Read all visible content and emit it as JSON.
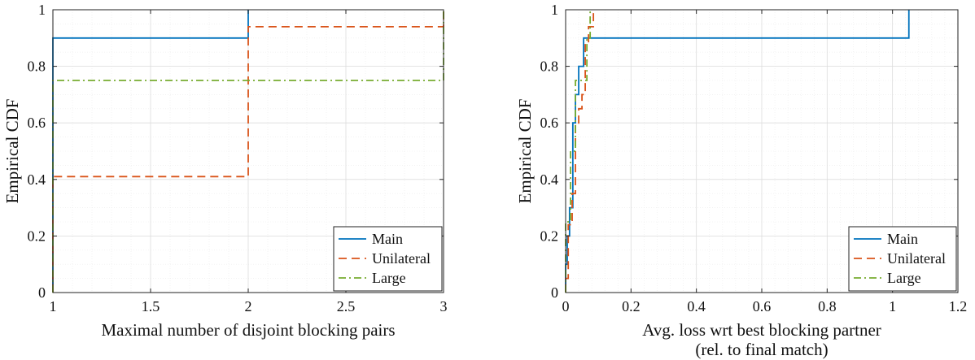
{
  "chart_data": [
    {
      "type": "line",
      "style": "step",
      "xlabel": "Maximal number of disjoint blocking pairs",
      "xlabel2": "",
      "ylabel": "Empirical CDF",
      "xlim": [
        1,
        3
      ],
      "ylim": [
        0,
        1
      ],
      "xticks": [
        1,
        1.5,
        2,
        2.5,
        3
      ],
      "xtick_labels": [
        "1",
        "1.5",
        "2",
        "2.5",
        "3"
      ],
      "yticks": [
        0,
        0.2,
        0.4,
        0.6,
        0.8,
        1
      ],
      "ytick_labels": [
        "0",
        "0.2",
        "0.4",
        "0.6",
        "0.8",
        "1"
      ],
      "grid": true,
      "legend_position": "bottom-right",
      "series": [
        {
          "name": "Main",
          "color": "#0072BD",
          "dash": "solid",
          "x": [
            1,
            1,
            2,
            2
          ],
          "y": [
            0,
            0.9,
            0.9,
            1
          ]
        },
        {
          "name": "Unilateral",
          "color": "#D95319",
          "dash": "dashed",
          "x": [
            1,
            1,
            2,
            2,
            3,
            3
          ],
          "y": [
            0,
            0.41,
            0.41,
            0.94,
            0.94,
            1
          ]
        },
        {
          "name": "Large",
          "color": "#77AC30",
          "dash": "dashdot",
          "x": [
            1,
            1,
            3,
            3
          ],
          "y": [
            0,
            0.75,
            0.75,
            1
          ]
        }
      ]
    },
    {
      "type": "line",
      "style": "step",
      "xlabel": "Avg. loss wrt best blocking partner",
      "xlabel2": "(rel. to final match)",
      "ylabel": "Empirical CDF",
      "xlim": [
        0,
        1.2
      ],
      "ylim": [
        0,
        1
      ],
      "xticks": [
        0,
        0.2,
        0.4,
        0.6,
        0.8,
        1,
        1.2
      ],
      "xtick_labels": [
        "0",
        "0.2",
        "0.4",
        "0.6",
        "0.8",
        "1",
        "1.2"
      ],
      "yticks": [
        0,
        0.2,
        0.4,
        0.6,
        0.8,
        1
      ],
      "ytick_labels": [
        "0",
        "0.2",
        "0.4",
        "0.6",
        "0.8",
        "1"
      ],
      "grid": true,
      "legend_position": "bottom-right",
      "series": [
        {
          "name": "Main",
          "color": "#0072BD",
          "dash": "solid",
          "x": [
            0.0,
            0.0,
            0.005,
            0.005,
            0.012,
            0.012,
            0.022,
            0.022,
            0.03,
            0.03,
            0.04,
            0.04,
            0.055,
            0.055,
            0.06,
            0.06,
            1.05,
            1.05
          ],
          "y": [
            0,
            0.1,
            0.1,
            0.2,
            0.2,
            0.3,
            0.3,
            0.6,
            0.6,
            0.7,
            0.7,
            0.8,
            0.8,
            0.9,
            0.9,
            0.9,
            0.9,
            1.0
          ]
        },
        {
          "name": "Unilateral",
          "color": "#D95319",
          "dash": "dashed",
          "x": [
            0.0,
            0.0,
            0.008,
            0.008,
            0.02,
            0.02,
            0.03,
            0.03,
            0.04,
            0.04,
            0.05,
            0.05,
            0.06,
            0.06,
            0.07,
            0.07,
            0.085,
            0.085
          ],
          "y": [
            0,
            0.05,
            0.05,
            0.24,
            0.24,
            0.35,
            0.35,
            0.59,
            0.59,
            0.65,
            0.65,
            0.7,
            0.7,
            0.88,
            0.88,
            0.94,
            0.94,
            1.0
          ]
        },
        {
          "name": "Large",
          "color": "#77AC30",
          "dash": "dashdot",
          "x": [
            0.0,
            0.0,
            0.005,
            0.005,
            0.015,
            0.015,
            0.03,
            0.03,
            0.045,
            0.045,
            0.065,
            0.065,
            0.075,
            0.075
          ],
          "y": [
            0,
            0.25,
            0.25,
            0.25,
            0.25,
            0.5,
            0.5,
            0.75,
            0.75,
            0.75,
            0.75,
            0.9,
            0.9,
            1.0
          ]
        }
      ]
    }
  ]
}
